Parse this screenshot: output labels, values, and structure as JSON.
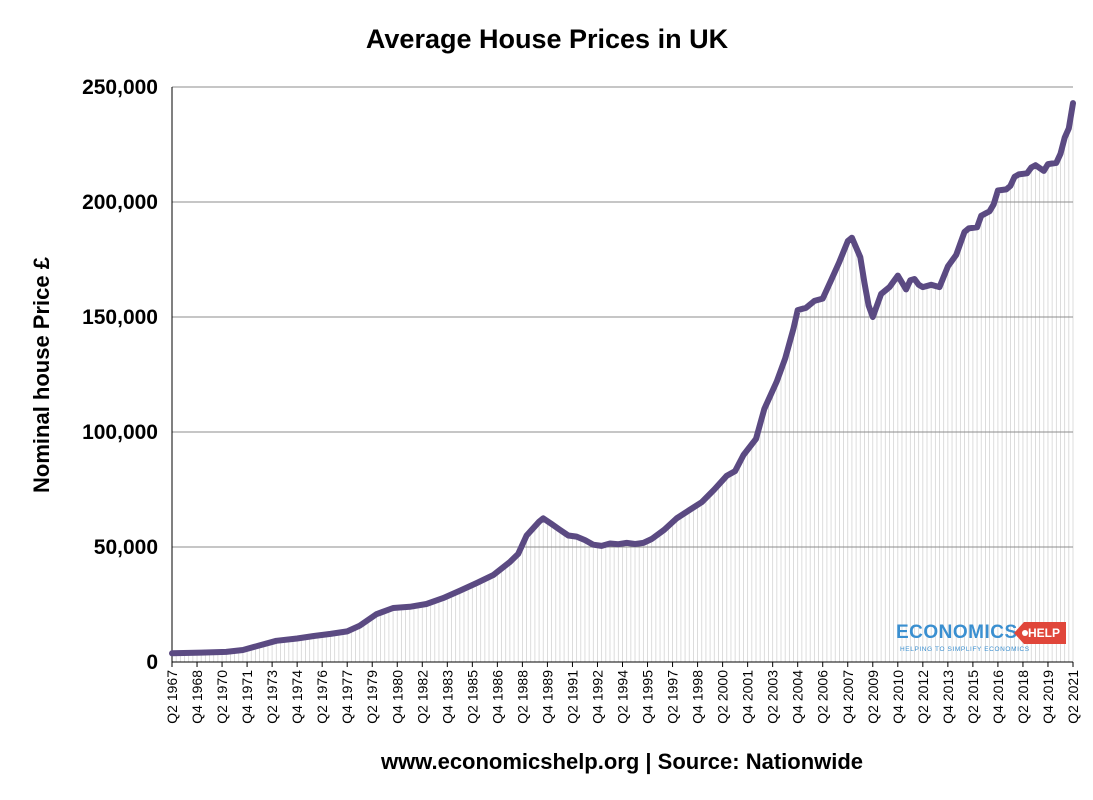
{
  "chart_data": {
    "type": "area",
    "title": "Average House Prices in UK",
    "xlabel": "www.economicshelp.org | Source: Nationwide",
    "ylabel": "Nominal house Price £",
    "ylim": [
      0,
      250000
    ],
    "yticks": [
      "0",
      "50,000",
      "100,000",
      "150,000",
      "200,000",
      "250,000"
    ],
    "ytick_values": [
      0,
      50000,
      100000,
      150000,
      200000,
      250000
    ],
    "x_start": 1967.25,
    "x_end": 2021.25,
    "xtick_labels": [
      "Q2 1967",
      "Q4 1968",
      "Q2 1970",
      "Q4 1971",
      "Q2 1973",
      "Q4 1974",
      "Q2 1976",
      "Q4 1977",
      "Q2 1979",
      "Q4 1980",
      "Q2 1982",
      "Q4 1983",
      "Q2 1985",
      "Q4 1986",
      "Q2 1988",
      "Q4 1989",
      "Q2 1991",
      "Q4 1992",
      "Q2 1994",
      "Q4 1995",
      "Q2 1997",
      "Q4 1998",
      "Q2 2000",
      "Q4 2001",
      "Q2 2003",
      "Q4 2004",
      "Q2 2006",
      "Q4 2007",
      "Q2 2009",
      "Q4 2010",
      "Q2 2012",
      "Q4 2013",
      "Q2 2015",
      "Q4 2016",
      "Q2 2018",
      "Q4 2019",
      "Q2 2021"
    ],
    "series": [
      {
        "name": "Nominal house price",
        "color": "#5b4a82",
        "points": [
          [
            1967.25,
            3800
          ],
          [
            1969.0,
            4100
          ],
          [
            1970.5,
            4400
          ],
          [
            1971.5,
            5200
          ],
          [
            1972.5,
            7200
          ],
          [
            1973.5,
            9200
          ],
          [
            1974.75,
            10200
          ],
          [
            1975.75,
            11300
          ],
          [
            1976.75,
            12200
          ],
          [
            1977.75,
            13300
          ],
          [
            1978.5,
            15800
          ],
          [
            1979.5,
            20800
          ],
          [
            1980.5,
            23500
          ],
          [
            1981.5,
            24000
          ],
          [
            1982.5,
            25200
          ],
          [
            1983.5,
            27800
          ],
          [
            1984.5,
            31000
          ],
          [
            1985.5,
            34300
          ],
          [
            1986.5,
            37800
          ],
          [
            1987.5,
            43500
          ],
          [
            1988.0,
            47000
          ],
          [
            1988.5,
            55000
          ],
          [
            1989.25,
            61000
          ],
          [
            1989.5,
            62500
          ],
          [
            1990.0,
            60000
          ],
          [
            1990.5,
            57500
          ],
          [
            1991.0,
            55000
          ],
          [
            1991.5,
            54500
          ],
          [
            1992.0,
            53000
          ],
          [
            1992.5,
            51000
          ],
          [
            1993.0,
            50500
          ],
          [
            1993.5,
            51500
          ],
          [
            1994.0,
            51200
          ],
          [
            1994.5,
            51800
          ],
          [
            1995.0,
            51300
          ],
          [
            1995.5,
            51800
          ],
          [
            1996.0,
            53500
          ],
          [
            1996.75,
            57500
          ],
          [
            1997.5,
            62500
          ],
          [
            1998.25,
            66000
          ],
          [
            1999.0,
            69500
          ],
          [
            1999.75,
            75000
          ],
          [
            2000.5,
            81000
          ],
          [
            2001.0,
            83000
          ],
          [
            2001.5,
            90000
          ],
          [
            2002.25,
            97000
          ],
          [
            2002.75,
            110000
          ],
          [
            2003.5,
            122000
          ],
          [
            2004.0,
            132000
          ],
          [
            2004.5,
            145000
          ],
          [
            2004.75,
            153000
          ],
          [
            2005.25,
            154000
          ],
          [
            2005.75,
            157000
          ],
          [
            2006.25,
            158000
          ],
          [
            2006.75,
            166000
          ],
          [
            2007.25,
            174000
          ],
          [
            2007.75,
            183000
          ],
          [
            2008.0,
            184500
          ],
          [
            2008.5,
            176000
          ],
          [
            2008.75,
            165000
          ],
          [
            2009.0,
            155000
          ],
          [
            2009.25,
            150000
          ],
          [
            2009.75,
            160000
          ],
          [
            2010.25,
            163000
          ],
          [
            2010.75,
            168000
          ],
          [
            2011.25,
            162000
          ],
          [
            2011.5,
            166000
          ],
          [
            2011.75,
            166500
          ],
          [
            2012.0,
            164000
          ],
          [
            2012.25,
            163000
          ],
          [
            2012.75,
            164000
          ],
          [
            2013.25,
            163000
          ],
          [
            2013.75,
            172000
          ],
          [
            2014.25,
            177000
          ],
          [
            2014.75,
            187000
          ],
          [
            2015.0,
            188500
          ],
          [
            2015.5,
            189000
          ],
          [
            2015.75,
            194000
          ],
          [
            2016.25,
            196000
          ],
          [
            2016.5,
            199000
          ],
          [
            2016.75,
            205000
          ],
          [
            2017.25,
            205500
          ],
          [
            2017.5,
            207000
          ],
          [
            2017.75,
            211000
          ],
          [
            2018.0,
            212000
          ],
          [
            2018.5,
            212500
          ],
          [
            2018.75,
            215000
          ],
          [
            2019.0,
            216000
          ],
          [
            2019.5,
            213500
          ],
          [
            2019.75,
            216500
          ],
          [
            2020.25,
            217000
          ],
          [
            2020.5,
            221000
          ],
          [
            2020.75,
            228000
          ],
          [
            2021.0,
            232000
          ],
          [
            2021.25,
            243000
          ]
        ]
      }
    ]
  },
  "logo": {
    "brand": "ECONOMICS",
    "tag": "HELP",
    "tagline": "HELPING TO SIMPLIFY ECONOMICS",
    "brand_color": "#3a8fd0",
    "tag_color": "#e0463a"
  }
}
